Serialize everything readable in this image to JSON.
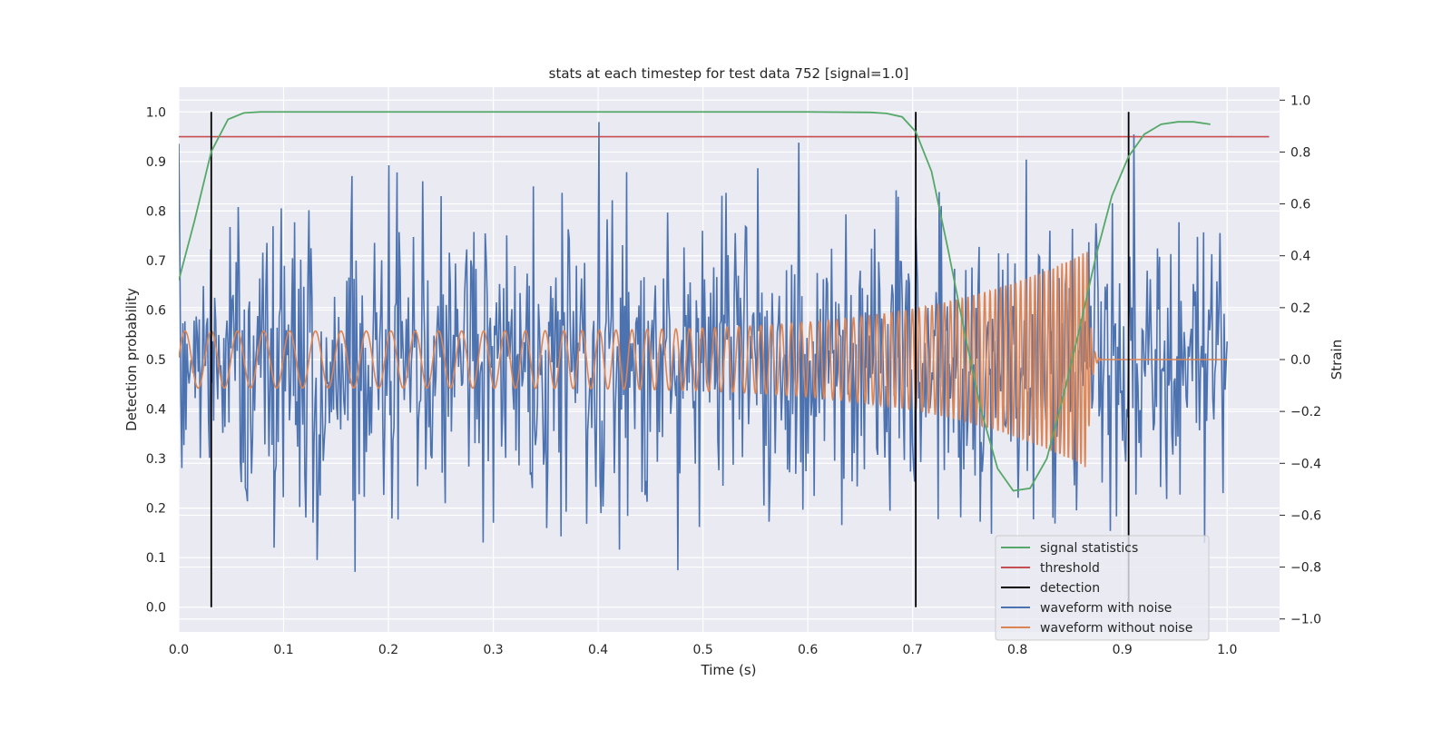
{
  "colors": {
    "background": "#eaeaf2",
    "grid": "#ffffff",
    "signal_statistics": "#55a868",
    "threshold": "#c44e52",
    "detection": "#000000",
    "waveform_with_noise": "#4c72b0",
    "waveform_without_noise": "#dd8452"
  },
  "chart_data": {
    "type": "line",
    "title": "stats at each timestep for test data 752 [signal=1.0]",
    "xlabel": "Time (s)",
    "ylabel_left": "Detection probability",
    "ylabel_right": "Strain",
    "xlim": [
      0.0,
      1.05
    ],
    "ylim_left": [
      -0.05,
      1.05
    ],
    "ylim_right": [
      -1.05,
      1.05
    ],
    "x_ticks": [
      "0.0",
      "0.1",
      "0.2",
      "0.3",
      "0.4",
      "0.5",
      "0.6",
      "0.7",
      "0.8",
      "0.9",
      "1.0"
    ],
    "y_ticks_left": [
      "0.0",
      "0.1",
      "0.2",
      "0.3",
      "0.4",
      "0.5",
      "0.6",
      "0.7",
      "0.8",
      "0.9",
      "1.0"
    ],
    "y_ticks_right": [
      "−1.0",
      "−0.8",
      "−0.6",
      "−0.4",
      "−0.2",
      "0.0",
      "0.2",
      "0.4",
      "0.6",
      "0.8",
      "1.0"
    ],
    "grid": true,
    "legend_position": "lower-right",
    "legend": [
      "signal statistics",
      "threshold",
      "detection",
      "waveform with noise",
      "waveform without noise"
    ],
    "signal_statistics": {
      "x": [
        0.0,
        0.015,
        0.031,
        0.047,
        0.062,
        0.078,
        0.1,
        0.2,
        0.3,
        0.4,
        0.5,
        0.6,
        0.66,
        0.675,
        0.69,
        0.703,
        0.718,
        0.734,
        0.75,
        0.765,
        0.781,
        0.796,
        0.812,
        0.828,
        0.843,
        0.859,
        0.875,
        0.89,
        0.906,
        0.921,
        0.937,
        0.953,
        0.968,
        0.984
      ],
      "y": [
        0.66,
        0.78,
        0.92,
        0.985,
        0.998,
        1.0,
        1.0,
        1.0,
        1.0,
        1.0,
        1.0,
        1.0,
        0.999,
        0.997,
        0.99,
        0.96,
        0.88,
        0.72,
        0.55,
        0.4,
        0.28,
        0.235,
        0.24,
        0.3,
        0.42,
        0.56,
        0.71,
        0.83,
        0.91,
        0.955,
        0.975,
        0.98,
        0.98,
        0.975
      ]
    },
    "threshold": 0.95,
    "threshold_xrange": [
      0.0,
      1.04
    ],
    "detections": [
      0.031,
      0.703,
      0.906
    ],
    "waveform_without_noise": {
      "t_range": [
        0.0,
        0.867
      ],
      "amplitude_start": 0.11,
      "amplitude_end": 0.42,
      "freq_start_hz": 40,
      "freq_end_hz": 260,
      "ringdown_end": 0.88
    },
    "waveform_with_noise": {
      "t_range": [
        0.0,
        1.0
      ],
      "samples": 1024,
      "std": 0.3,
      "range": [
        -0.95,
        0.92
      ]
    }
  }
}
